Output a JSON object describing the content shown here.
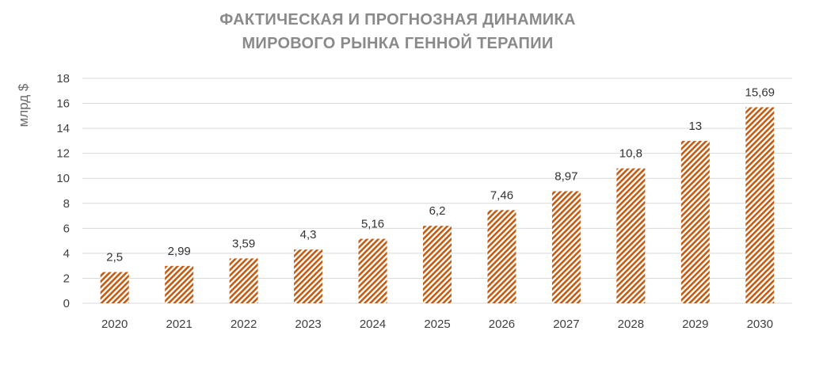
{
  "chart_data": {
    "type": "bar",
    "title_lines": [
      "ФАКТИЧЕСКАЯ И ПРОГНОЗНАЯ ДИНАМИКА",
      "МИРОВОГО РЫНКА ГЕННОЙ ТЕРАПИИ"
    ],
    "ylabel": "млрд $",
    "xlabel": "",
    "categories": [
      "2020",
      "2021",
      "2022",
      "2023",
      "2024",
      "2025",
      "2026",
      "2027",
      "2028",
      "2029",
      "2030"
    ],
    "values": [
      2.5,
      2.99,
      3.59,
      4.3,
      5.16,
      6.2,
      7.46,
      8.97,
      10.8,
      13,
      15.69
    ],
    "value_labels": [
      "2,5",
      "2,99",
      "3,59",
      "4,3",
      "5,16",
      "6,2",
      "7,46",
      "8,97",
      "10,8",
      "13",
      "15,69"
    ],
    "ylim": [
      0,
      18
    ],
    "yticks": [
      0,
      2,
      4,
      6,
      8,
      10,
      12,
      14,
      16,
      18
    ],
    "grid": true,
    "legend": "none",
    "bar_pattern": "diagonal-hatch",
    "colors": {
      "bar": "#c55a11",
      "bar_background": "#ffffff",
      "grid": "#d9d9d9",
      "title": "#8a8a8a"
    }
  }
}
